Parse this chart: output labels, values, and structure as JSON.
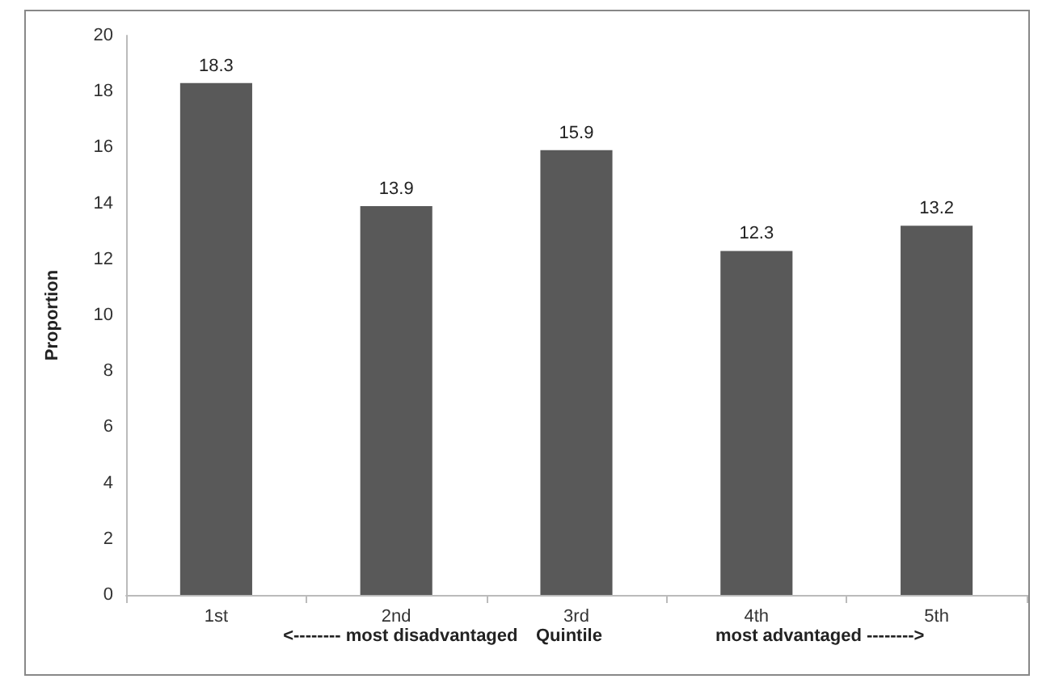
{
  "chart_data": {
    "type": "bar",
    "categories": [
      "1st",
      "2nd",
      "3rd",
      "4th",
      "5th"
    ],
    "values": [
      18.3,
      13.9,
      15.9,
      12.3,
      13.2
    ],
    "color": "#595959",
    "ylabel": "Proportion",
    "xlabel": "Quintile",
    "annotations": [
      "<-------- most disadvantaged",
      "most advantaged -------->"
    ],
    "ylim": [
      0,
      20
    ],
    "yticks": [
      0,
      2,
      4,
      6,
      8,
      10,
      12,
      14,
      16,
      18,
      20
    ],
    "grid": false,
    "data_labels": true
  }
}
